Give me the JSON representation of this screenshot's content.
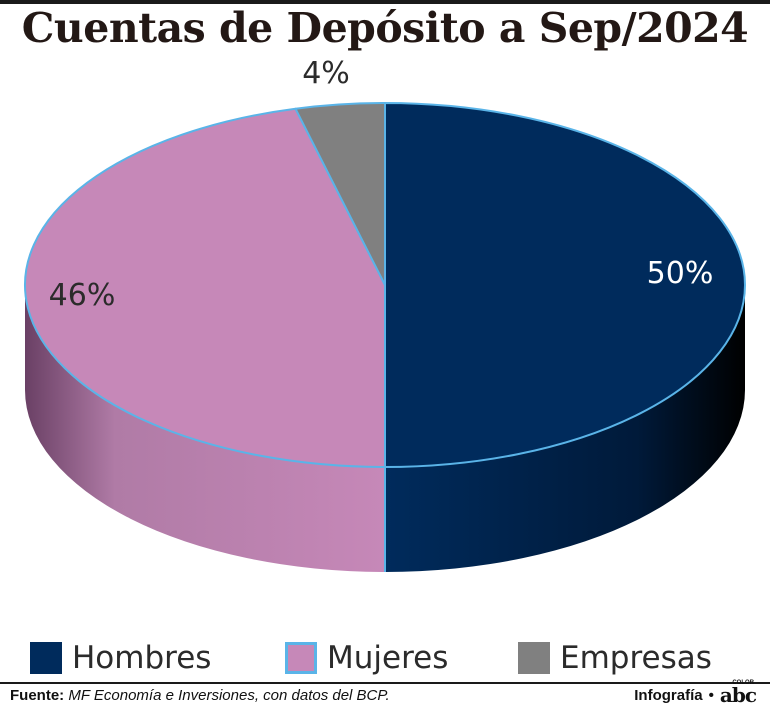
{
  "title": "Cuentas de Depósito a Sep/2024",
  "chart_data": {
    "type": "pie",
    "style": "3d",
    "series": [
      {
        "name": "Hombres",
        "value": 50,
        "label": "50%",
        "color": "#002b5c"
      },
      {
        "name": "Mujeres",
        "value": 46,
        "label": "46%",
        "color": "#c688b8"
      },
      {
        "name": "Empresas",
        "value": 4,
        "label": "4%",
        "color": "#808080"
      }
    ],
    "slice_border_color": "#5ab4e8",
    "legend_position": "bottom"
  },
  "legend": [
    {
      "label": "Hombres",
      "color": "#002b5c",
      "border": "#002b5c"
    },
    {
      "label": "Mujeres",
      "color": "#c688b8",
      "border": "#5ab4e8"
    },
    {
      "label": "Empresas",
      "color": "#808080",
      "border": "#808080"
    }
  ],
  "footer": {
    "source_label": "Fuente:",
    "source_text": "MF Economía e Inversiones, con datos del BCP.",
    "credit_label": "Infografía",
    "credit_sep": "•",
    "logo_text": "abc",
    "logo_sub": "COLOR"
  }
}
